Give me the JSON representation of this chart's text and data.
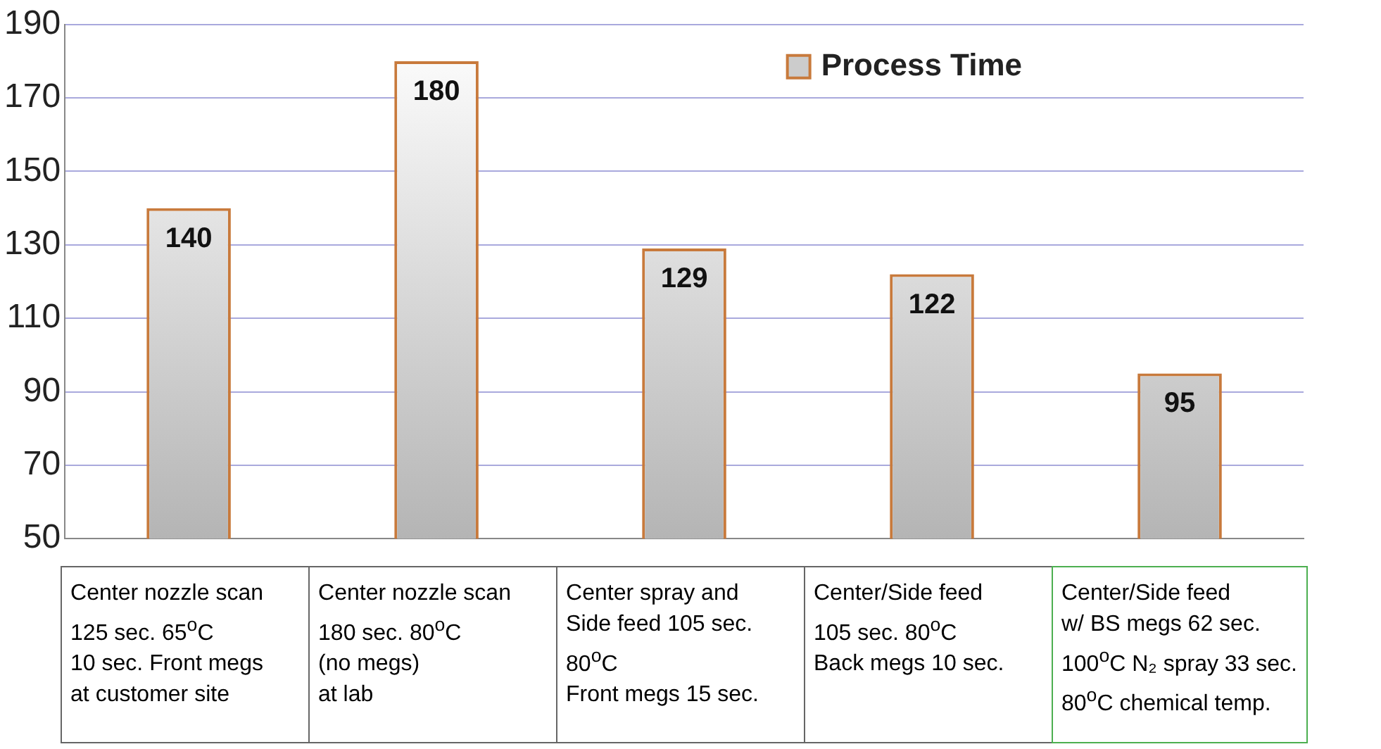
{
  "chart_data": {
    "type": "bar",
    "categories": [
      "Center nozzle scan\n125 sec. 65$^{o}$C\n10 sec. Front megs\nat customer site",
      "Center nozzle scan\n180 sec. 80$^{o}$C\n(no megs)\nat lab",
      "Center spray and\nSide feed 105 sec.\n80$^{o}$C\nFront megs 15 sec.",
      "Center/Side feed\n105 sec. 80$^{o}$C\nBack megs 10 sec.",
      "Center/Side feed\nw/ BS megs 62 sec.\n100$^{o}$C N₂ spray 33 sec.\n80$^{o}$C chemical temp."
    ],
    "series": [
      {
        "name": "Process Time",
        "color": "#c87a3c",
        "values": [
          140,
          180,
          129,
          122,
          95
        ]
      }
    ],
    "ylim": [
      50,
      190
    ],
    "yticks": [
      50,
      70,
      90,
      110,
      130,
      150,
      170,
      190
    ],
    "grid": "y",
    "legend": "top right",
    "data_labels": true
  }
}
